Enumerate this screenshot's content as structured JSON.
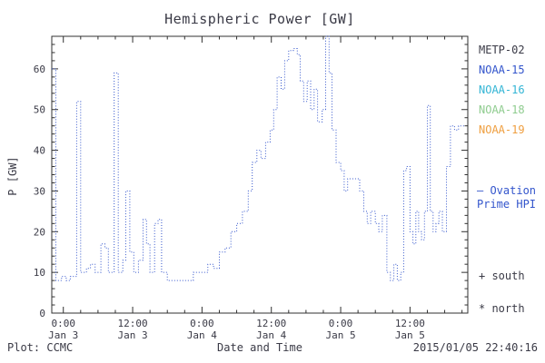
{
  "footer": {
    "left": "Plot: CCMC",
    "right": "2015/01/05 22:40:16"
  },
  "legend": {
    "items": [
      {
        "label": "METP-02",
        "color": "#3a3a46"
      },
      {
        "label": "NOAA-15",
        "color": "#3355cc"
      },
      {
        "label": "NOAA-16",
        "color": "#33b5d5"
      },
      {
        "label": "NOAA-18",
        "color": "#8fcc8f"
      },
      {
        "label": "NOAA-19",
        "color": "#ef9f40"
      }
    ]
  },
  "annotations": {
    "ovation_line1": "– Ovation",
    "ovation_line2": "Prime HPI",
    "ovation_color": "#3355cc",
    "south_label": "+ south",
    "north_label": "* north"
  },
  "chart_data": {
    "type": "line",
    "title": "Hemispheric Power [GW]",
    "xlabel": "Date and Time",
    "ylabel": "P [GW]",
    "ylim": [
      0,
      68
    ],
    "xlim_hours": [
      -2,
      70
    ],
    "grid": false,
    "legend_position": "right",
    "line_color": "#3355cc",
    "frame_color": "#303030",
    "line_style": "dotted",
    "step": true,
    "yticks": [
      0,
      10,
      20,
      30,
      40,
      50,
      60
    ],
    "xticks": [
      {
        "hour": 0,
        "time": "0:00",
        "date": "Jan 3"
      },
      {
        "hour": 12,
        "time": "12:00",
        "date": "Jan 3"
      },
      {
        "hour": 24,
        "time": "0:00",
        "date": "Jan 4"
      },
      {
        "hour": 36,
        "time": "12:00",
        "date": "Jan 4"
      },
      {
        "hour": 48,
        "time": "0:00",
        "date": "Jan 5"
      },
      {
        "hour": 60,
        "time": "12:00",
        "date": "Jan 5"
      }
    ],
    "points_hours_gw": [
      [
        -2,
        60
      ],
      [
        -1.3,
        8
      ],
      [
        -0.3,
        9
      ],
      [
        0.5,
        8
      ],
      [
        1.2,
        9
      ],
      [
        2.3,
        52
      ],
      [
        3,
        10
      ],
      [
        4,
        11
      ],
      [
        4.7,
        12
      ],
      [
        5.5,
        10
      ],
      [
        6.5,
        17
      ],
      [
        7.2,
        16
      ],
      [
        7.8,
        10
      ],
      [
        8.8,
        59
      ],
      [
        9.5,
        10
      ],
      [
        10.3,
        13
      ],
      [
        10.8,
        30
      ],
      [
        11.5,
        15
      ],
      [
        12.2,
        10
      ],
      [
        13,
        13
      ],
      [
        13.8,
        23
      ],
      [
        14.4,
        17
      ],
      [
        15,
        10
      ],
      [
        15.8,
        22
      ],
      [
        16.4,
        23
      ],
      [
        17,
        10
      ],
      [
        18,
        8
      ],
      [
        21.5,
        8
      ],
      [
        22.5,
        10
      ],
      [
        24,
        10
      ],
      [
        25,
        12
      ],
      [
        26,
        11
      ],
      [
        27,
        15
      ],
      [
        28,
        16
      ],
      [
        29,
        20
      ],
      [
        30,
        22
      ],
      [
        31,
        25
      ],
      [
        32,
        30
      ],
      [
        32.7,
        37
      ],
      [
        33.5,
        40
      ],
      [
        34.2,
        38
      ],
      [
        35,
        42
      ],
      [
        35.8,
        45
      ],
      [
        36.4,
        50
      ],
      [
        37,
        58
      ],
      [
        37.7,
        55
      ],
      [
        38.3,
        62
      ],
      [
        39,
        64.5
      ],
      [
        39.8,
        65
      ],
      [
        40.5,
        63.5
      ],
      [
        41,
        57
      ],
      [
        41.6,
        52
      ],
      [
        42.2,
        57
      ],
      [
        42.8,
        50
      ],
      [
        43.4,
        55
      ],
      [
        44,
        47
      ],
      [
        44.8,
        50
      ],
      [
        45.4,
        68
      ],
      [
        46,
        59
      ],
      [
        46.5,
        45
      ],
      [
        47.2,
        37
      ],
      [
        48,
        35
      ],
      [
        48.6,
        30
      ],
      [
        49.2,
        33
      ],
      [
        50.5,
        33
      ],
      [
        51.3,
        30
      ],
      [
        52,
        25
      ],
      [
        52.6,
        22
      ],
      [
        53.2,
        25
      ],
      [
        54,
        22
      ],
      [
        54.6,
        20
      ],
      [
        55.2,
        24
      ],
      [
        56,
        10
      ],
      [
        56.6,
        8
      ],
      [
        57.2,
        12
      ],
      [
        57.8,
        8
      ],
      [
        58.4,
        10
      ],
      [
        58.9,
        35
      ],
      [
        59.4,
        36
      ],
      [
        60,
        20
      ],
      [
        60.5,
        17
      ],
      [
        61,
        25
      ],
      [
        61.5,
        20
      ],
      [
        62,
        18
      ],
      [
        62.5,
        25
      ],
      [
        63,
        51
      ],
      [
        63.5,
        25
      ],
      [
        64,
        20
      ],
      [
        64.5,
        22
      ],
      [
        65,
        25
      ],
      [
        65.6,
        20
      ],
      [
        66.3,
        36
      ],
      [
        67,
        46
      ],
      [
        67.7,
        45
      ],
      [
        68.4,
        46
      ],
      [
        69.5,
        46
      ]
    ]
  }
}
